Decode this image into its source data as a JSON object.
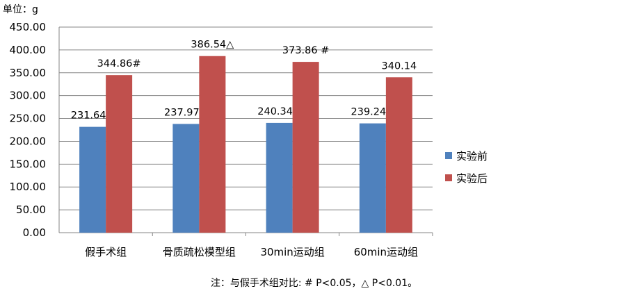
{
  "chart_data": {
    "type": "bar",
    "unit_label": "单位：g",
    "categories": [
      "假手术组",
      "骨质疏松模型组",
      "30min运动组",
      "60min运动组"
    ],
    "series": [
      {
        "name": "实验前",
        "color": "#4f81bd",
        "values": [
          231.64,
          237.97,
          240.34,
          239.24
        ],
        "labels": [
          "231.64",
          "237.97",
          "240.34",
          "239.24"
        ]
      },
      {
        "name": "实验后",
        "color": "#c0504d",
        "values": [
          344.86,
          386.54,
          373.86,
          340.14
        ],
        "labels": [
          "344.86#",
          "386.54△",
          "373.86 #",
          "340.14"
        ]
      }
    ],
    "ylim": [
      0,
      450
    ],
    "yticks": [
      "0.00",
      "50.00",
      "100.00",
      "150.00",
      "200.00",
      "250.00",
      "300.00",
      "350.00",
      "400.00",
      "450.00"
    ],
    "grid": true,
    "legend_position": "right",
    "note": "注：与假手术组对比: # P<0.05，△ P<0.01。"
  }
}
